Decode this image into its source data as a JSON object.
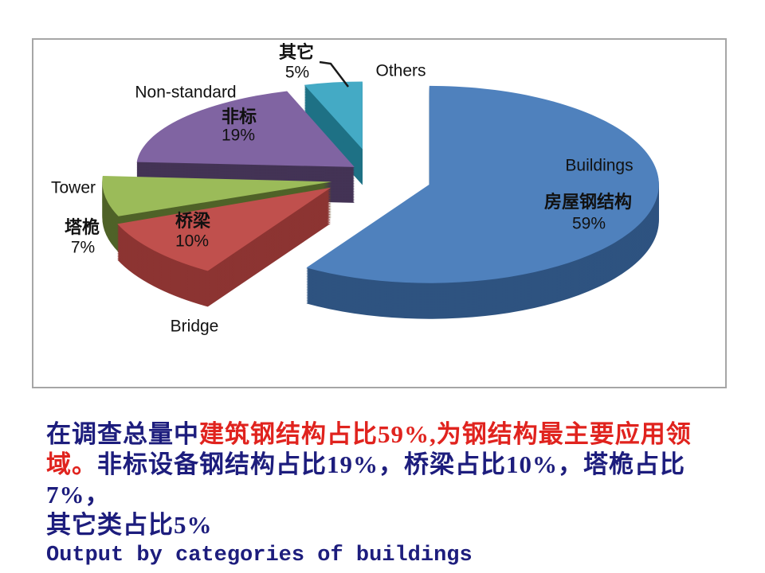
{
  "slide": {
    "background": "#FFFFFF"
  },
  "chart": {
    "frame_border_color": "#A6A6A6",
    "background": "#FFFFFF",
    "label_color": "#111111"
  },
  "chart_data": {
    "type": "pie",
    "style": "3d-exploded",
    "direction": "clockwise",
    "start_angle_deg": 0,
    "legend": "none",
    "slices": [
      {
        "label_en": "Buildings",
        "label_zh": "房屋钢结构",
        "value": 59,
        "pct_label": "59%",
        "color": "#4F81BD",
        "side_color": "#2E5380"
      },
      {
        "label_en": "Bridge",
        "label_zh": "桥梁",
        "value": 10,
        "pct_label": "10%",
        "color": "#C0504D",
        "side_color": "#8C3432"
      },
      {
        "label_en": "Tower",
        "label_zh": "塔桅",
        "value": 7,
        "pct_label": "7%",
        "color": "#9BBB59",
        "side_color": "#4F6228"
      },
      {
        "label_en": "Non-standard",
        "label_zh": "非标",
        "value": 19,
        "pct_label": "19%",
        "color": "#8064A2",
        "side_color": "#433355"
      },
      {
        "label_en": "Others",
        "label_zh": "其它",
        "value": 5,
        "pct_label": "5%",
        "color": "#44AAC5",
        "side_color": "#1E7185"
      }
    ]
  },
  "caption": {
    "line1_normal": "在调查总量中",
    "line1_highlight": "建筑钢结构占比59%,为钢结构最主要应用领",
    "line2_highlight": "域。",
    "line2_normal": "非标设备钢结构占比19%，桥梁占比10%，塔桅占比7%，",
    "line3": "其它类占比5%",
    "line4": "Output by categories of buildings",
    "text_color": "#1D1D7D",
    "highlight_color": "#E0231E"
  }
}
